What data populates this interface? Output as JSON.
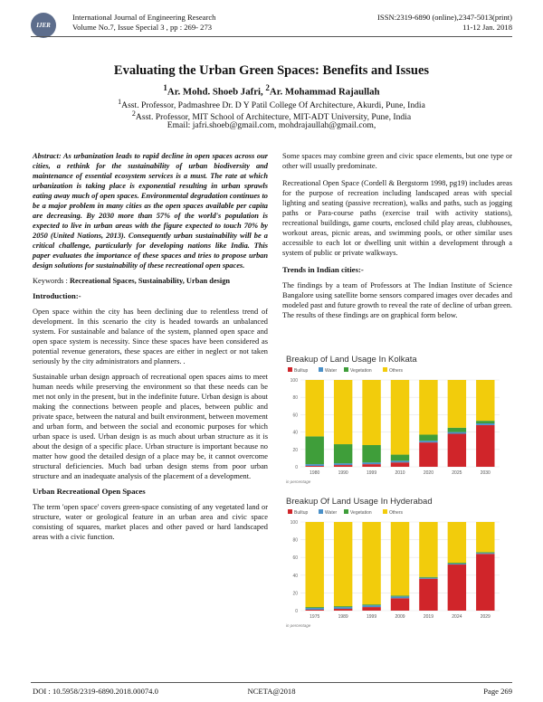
{
  "header": {
    "journal": "International Journal of Engineering Research",
    "volume": "Volume No.7, Issue Special 3 , pp : 269- 273",
    "issn": "ISSN:2319-6890 (online),2347-5013(print)",
    "date": "11-12 Jan. 2018",
    "logo_text": "IJER"
  },
  "title": "Evaluating the Urban Green Spaces: Benefits and Issues",
  "authors": {
    "sup1": "1",
    "name1": "Ar. Mohd. Shoeb Jafri, ",
    "sup2": "2",
    "name2": "Ar. Mohammad Rajaullah"
  },
  "affiliations": {
    "sup1": "1",
    "line1": "Asst. Professor, Padmashree Dr. D Y Patil College Of Architecture, Akurdi, Pune, India",
    "sup2": "2",
    "line2": "Asst. Professor, MIT School of Architecture, MIT-ADT University, Pune, India",
    "email": "Email: jafri.shoeb@gmail.com, mohdrajaullah@gmail.com,"
  },
  "left_column": {
    "abstract": "Abstract: As urbanization leads to rapid decline in open spaces across our cities, a rethink for the sustainability of urban biodiversity and maintenance of essential ecosystem services is a must. The rate at which urbanization is taking place is exponential resulting in urban sprawls eating away much of open spaces. Environmental degradation continues to be a major problem in many cities as the open spaces available per capita are decreasing. By 2030 more than 57% of the world's population is expected to live in urban areas with the figure expected to touch 70% by 2050 (United Nations, 2013). Consequently urban sustainability will be a critical challenge, particularly for developing nations like India. This paper evaluates the importance of these spaces and tries to propose urban design solutions for sustainability of these recreational open spaces.",
    "keywords_label": "Keywords : ",
    "keywords": "Recreational Spaces, Sustainability, Urban design",
    "intro_heading": "Introduction:-",
    "intro_p1": "Open space within the city has been declining due to relentless trend of development. In this scenario the city is headed towards an unbalanced system. For sustainable and balance of the system, planned open space and open space system is necessity. Since these spaces have been considered as potential revenue generators, these spaces are either in neglect or not taken seriously by the city administrators and planners. .",
    "intro_p2": "Sustainable urban design approach of recreational open spaces aims to meet human needs while preserving the environment so that these needs can be met not only in the present, but in the indefinite future. Urban design is about making the connections between people and places, between public and private space, between the natural and built environment, between movement and urban form, and between the social and economic purposes for which urban space is used. Urban design is as much about urban structure as it is about the design of a specific place. Urban structure is important because no matter how good the detailed design of a place may be, it cannot overcome structural deficiencies. Much bad urban design stems from poor urban structure and an inadequate analysis of the placement of a development.",
    "uros_heading": "Urban Recreational Open Spaces",
    "uros_p1": "The term 'open space' covers green-space consisting of any vegetated land or structure, water or geological feature in an urban area and civic space consisting of squares, market places and other paved or hard landscaped areas with a civic function."
  },
  "right_column": {
    "p1": "Some spaces may combine green and civic space elements, but one type or other will usually predominate.",
    "p2": "Recreational Open Space (Cordell & Bergstorm 1998, pg19) includes areas for the purpose of recreation including landscaped areas with special lighting and seating (passive recreation), walks and paths, such as jogging paths or Para-course paths (exercise trail with activity stations), recreational buildings, game courts, enclosed child play areas, clubhouses, workout areas, picnic areas, and swimming pools, or other similar uses accessible to each lot or dwelling unit within a development through a system of public or private walkways.",
    "trends_heading": "Trends in Indian cities:-",
    "p3": "The findings by a team of Professors at The Indian Institute of Science Bangalore using satellite borne sensors compared images over decades and modeled past and future growth to reveal the rate of decline of urban green. The results of these findings are on graphical form below."
  },
  "chart_data": [
    {
      "type": "bar",
      "stacked": true,
      "title": "Breakup of Land Usage In Kolkata",
      "categories": [
        "1980",
        "1990",
        "1999",
        "2010",
        "2020",
        "2025",
        "2030"
      ],
      "series": [
        {
          "name": "Builtup",
          "color": "#d0252a",
          "values": [
            1,
            2,
            3,
            5,
            28,
            38,
            48
          ]
        },
        {
          "name": "Water",
          "color": "#4a90c8",
          "values": [
            2,
            2,
            2,
            2,
            2,
            2,
            2
          ]
        },
        {
          "name": "Vegetation",
          "color": "#3f9e3a",
          "values": [
            32,
            22,
            20,
            7,
            7,
            5,
            3
          ]
        },
        {
          "name": "Others",
          "color": "#f2cc0c",
          "values": [
            65,
            74,
            75,
            86,
            63,
            55,
            47
          ]
        }
      ],
      "yticks": [
        "0",
        "20",
        "40",
        "60",
        "80",
        "100"
      ],
      "ylim": [
        0,
        100
      ],
      "note": "in percentage"
    },
    {
      "type": "bar",
      "stacked": true,
      "title": "Breakup Of Land Usage In Hyderabad",
      "categories": [
        "1975",
        "1989",
        "1999",
        "2009",
        "2019",
        "2024",
        "2029"
      ],
      "series": [
        {
          "name": "Builtup",
          "color": "#d0252a",
          "values": [
            1,
            2,
            4,
            14,
            36,
            52,
            64
          ]
        },
        {
          "name": "Water",
          "color": "#4a90c8",
          "values": [
            2,
            2,
            2,
            2,
            1,
            1,
            1
          ]
        },
        {
          "name": "Vegetation",
          "color": "#3f9e3a",
          "values": [
            1,
            1,
            1,
            1,
            1,
            1,
            1
          ]
        },
        {
          "name": "Others",
          "color": "#f2cc0c",
          "values": [
            96,
            95,
            93,
            83,
            62,
            46,
            34
          ]
        }
      ],
      "yticks": [
        "0",
        "20",
        "40",
        "60",
        "80",
        "100"
      ],
      "ylim": [
        0,
        100
      ],
      "note": "in percentage"
    }
  ],
  "footer": {
    "doi": "DOI : 10.5958/2319-6890.2018.00074.0",
    "conf": "NCETA@2018",
    "page": "Page 269"
  }
}
